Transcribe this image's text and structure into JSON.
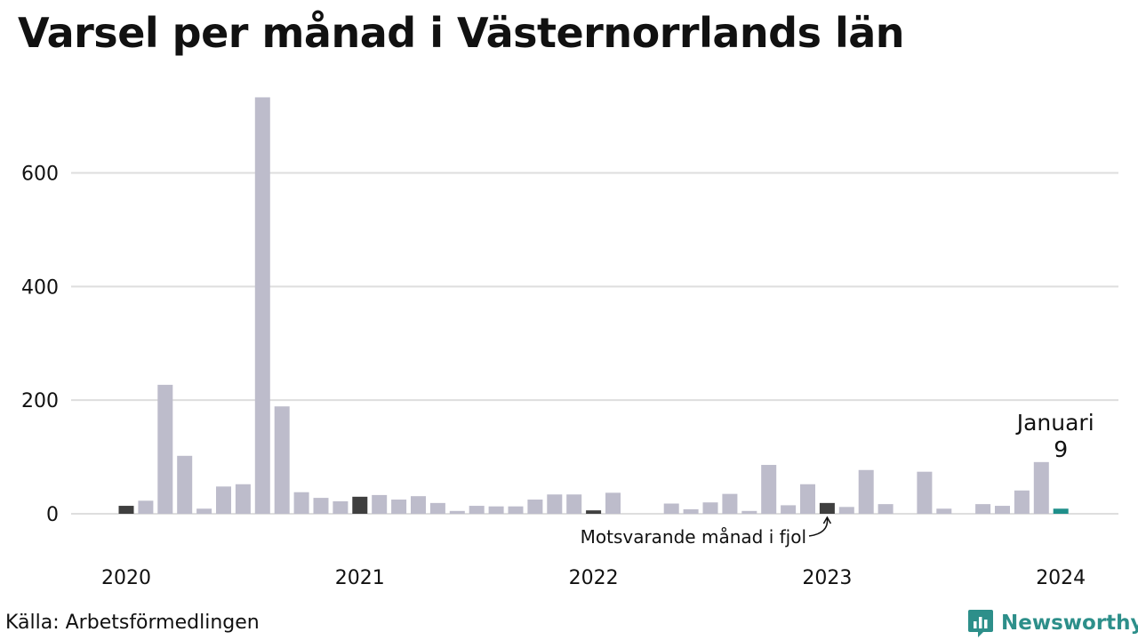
{
  "title": "Varsel per månad i Västernorrlands län",
  "source": "Källa: Arbetsförmedlingen",
  "brand": {
    "name": "Newsworthy",
    "icon": "newsworthy-logo-icon"
  },
  "colors": {
    "bar": "#bdbccb",
    "same_month_last_year": "#3f3f3f",
    "latest": "#1f8f8a",
    "grid": "#dedede",
    "brand": "#2d8f8a"
  },
  "chart_data": {
    "type": "bar",
    "ylim": [
      0,
      740
    ],
    "yticks": [
      0,
      200,
      400,
      600
    ],
    "xticks": [
      "2020",
      "2021",
      "2022",
      "2023",
      "2024"
    ],
    "grid": true,
    "months": [
      "2020-01",
      "2020-02",
      "2020-03",
      "2020-04",
      "2020-05",
      "2020-06",
      "2020-07",
      "2020-08",
      "2020-09",
      "2020-10",
      "2020-11",
      "2020-12",
      "2021-01",
      "2021-02",
      "2021-03",
      "2021-04",
      "2021-05",
      "2021-06",
      "2021-07",
      "2021-08",
      "2021-09",
      "2021-10",
      "2021-11",
      "2021-12",
      "2022-01",
      "2022-02",
      "2022-03",
      "2022-04",
      "2022-05",
      "2022-06",
      "2022-07",
      "2022-08",
      "2022-09",
      "2022-10",
      "2022-11",
      "2022-12",
      "2023-01",
      "2023-02",
      "2023-03",
      "2023-04",
      "2023-05",
      "2023-06",
      "2023-07",
      "2023-08",
      "2023-09",
      "2023-10",
      "2023-11",
      "2023-12",
      "2024-01"
    ],
    "values": [
      14,
      23,
      227,
      102,
      9,
      48,
      52,
      733,
      189,
      38,
      28,
      22,
      30,
      33,
      25,
      31,
      19,
      5,
      14,
      13,
      13,
      25,
      34,
      34,
      6,
      37,
      0,
      0,
      18,
      8,
      20,
      35,
      5,
      86,
      15,
      52,
      19,
      12,
      77,
      17,
      0,
      74,
      9,
      0,
      17,
      14,
      41,
      91,
      9
    ],
    "highlight_same_month": [
      "2020-01",
      "2021-01",
      "2022-01",
      "2023-01"
    ],
    "latest": "2024-01",
    "annotations": {
      "latest_label": "Januari",
      "latest_value": "9",
      "previous_year": "Motsvarande månad i fjol"
    }
  }
}
